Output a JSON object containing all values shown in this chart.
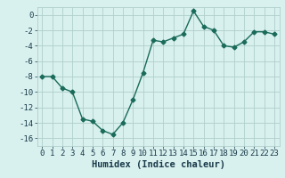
{
  "x": [
    0,
    1,
    2,
    3,
    4,
    5,
    6,
    7,
    8,
    9,
    10,
    11,
    12,
    13,
    14,
    15,
    16,
    17,
    18,
    19,
    20,
    21,
    22,
    23
  ],
  "y": [
    -8,
    -8,
    -9.5,
    -10,
    -13.5,
    -13.8,
    -15,
    -15.5,
    -14,
    -11,
    -7.5,
    -3.3,
    -3.5,
    -3.0,
    -2.5,
    0.5,
    -1.5,
    -2.0,
    -4.0,
    -4.2,
    -3.5,
    -2.2,
    -2.2,
    -2.5
  ],
  "line_color": "#1a6b5a",
  "bg_color": "#d8f0ee",
  "grid_color": "#b0cfcb",
  "xlabel": "Humidex (Indice chaleur)",
  "ylim": [
    -17,
    1
  ],
  "xlim": [
    -0.5,
    23.5
  ],
  "yticks": [
    0,
    -2,
    -4,
    -6,
    -8,
    -10,
    -12,
    -14,
    -16
  ],
  "xticks": [
    0,
    1,
    2,
    3,
    4,
    5,
    6,
    7,
    8,
    9,
    10,
    11,
    12,
    13,
    14,
    15,
    16,
    17,
    18,
    19,
    20,
    21,
    22,
    23
  ],
  "marker": "D",
  "marker_size": 2.5,
  "line_width": 1.0,
  "font_color": "#1a3a4a",
  "xlabel_fontsize": 7.5,
  "tick_fontsize": 6.5
}
